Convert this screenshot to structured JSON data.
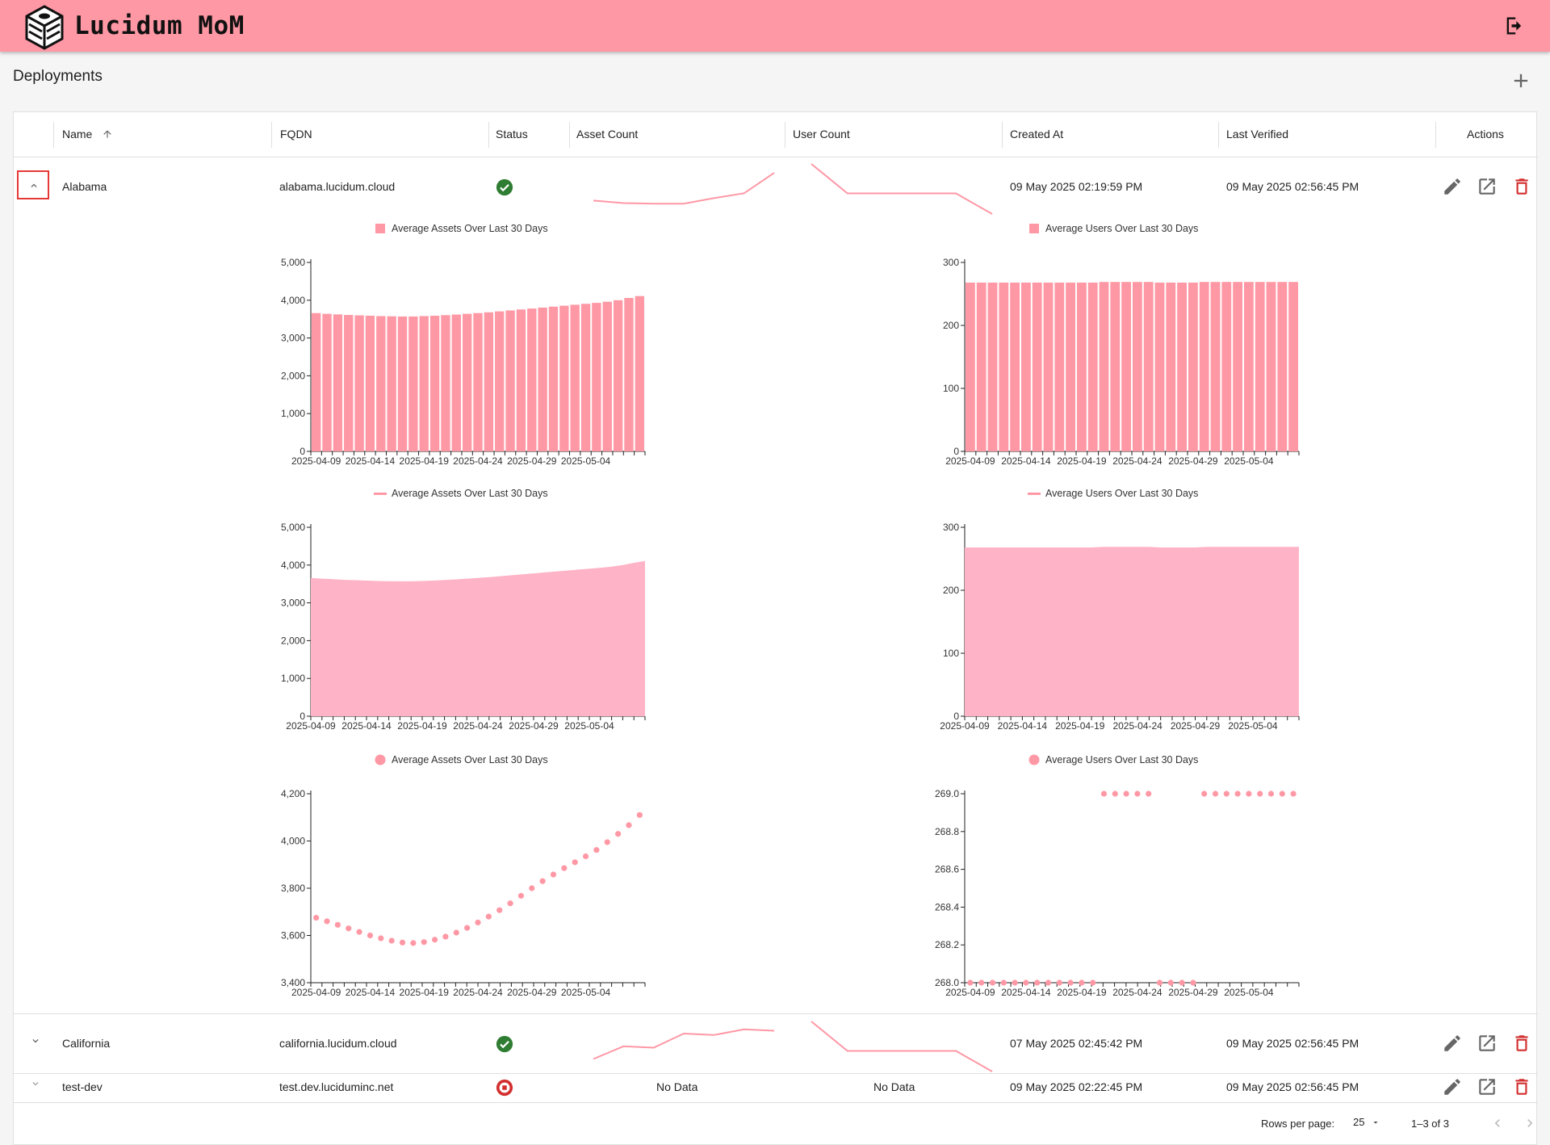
{
  "app": {
    "title": "Lucidum MoM",
    "logo_icon": "lucidum-cube-logo",
    "logout_icon": "logout-icon",
    "brand_color": "#ff98a5"
  },
  "page": {
    "title": "Deployments",
    "add_icon": "plus-icon"
  },
  "table": {
    "columns": [
      "Name",
      "FQDN",
      "Status",
      "Asset Count",
      "User Count",
      "Created At",
      "Last Verified",
      "Actions"
    ],
    "sort": {
      "column": "Name",
      "direction": "ascending",
      "icon": "arrow-up-icon"
    },
    "rows": [
      {
        "name": "Alabama",
        "fqdn": "alabama.lucidum.cloud",
        "status": "ok",
        "asset_count": "",
        "user_count": "",
        "asset_spark": [
          3660,
          3620,
          3610,
          3610,
          3700,
          3780,
          4110
        ],
        "user_spark": [
          269.0,
          268.0,
          268.0,
          268.0,
          268.0,
          267.3
        ],
        "created_at": "09 May 2025 02:19:59 PM",
        "last_verified": "09 May 2025 02:56:45 PM",
        "expanded": true
      },
      {
        "name": "California",
        "fqdn": "california.lucidum.cloud",
        "status": "ok",
        "asset_count": "",
        "user_count": "",
        "asset_spark": [
          2,
          11,
          10,
          20,
          19,
          23,
          22
        ],
        "user_spark": [
          269.0,
          268.0,
          268.0,
          268.0,
          268.0,
          267.3
        ],
        "created_at": "07 May 2025 02:45:42 PM",
        "last_verified": "09 May 2025 02:56:45 PM",
        "expanded": false
      },
      {
        "name": "test-dev",
        "fqdn": "test.dev.luciduminc.net",
        "status": "error",
        "asset_count": "No Data",
        "user_count": "No Data",
        "created_at": "09 May 2025 02:22:45 PM",
        "last_verified": "09 May 2025 02:56:45 PM",
        "expanded": false
      }
    ],
    "row_icons": {
      "expand_open": "chevron-up-icon",
      "expand_closed": "chevron-down-icon",
      "status_ok": "check-circle-icon",
      "status_error": "stop-circle-icon",
      "edit": "pencil-icon",
      "open": "open-in-new-icon",
      "delete": "trash-icon"
    },
    "colors": {
      "ok": "#2e7d32",
      "error": "#d32f2f",
      "delete": "#d32f2f",
      "series": "#ff98a5",
      "area": "#ffb3c6"
    }
  },
  "pagination": {
    "rows_per_page_label": "Rows per page:",
    "rows_per_page": "25",
    "range": "1–3 of 3"
  },
  "chart_data": [
    {
      "type": "bar",
      "legend": "Average Assets Over Last 30 Days",
      "tick_labels": [
        "2025-04-09",
        "2025-04-14",
        "2025-04-19",
        "2025-04-24",
        "2025-04-29",
        "2025-05-04"
      ],
      "x_start": "2025-04-09",
      "values": [
        3660,
        3640,
        3625,
        3610,
        3600,
        3590,
        3580,
        3575,
        3570,
        3570,
        3580,
        3590,
        3605,
        3620,
        3640,
        3660,
        3680,
        3705,
        3730,
        3755,
        3780,
        3805,
        3830,
        3855,
        3880,
        3905,
        3930,
        3960,
        4000,
        4060,
        4110
      ],
      "ylim": [
        0,
        5000
      ],
      "yticks": [
        0,
        1000,
        2000,
        3000,
        4000,
        5000
      ],
      "ytick_labels": [
        "0",
        "1,000",
        "2,000",
        "3,000",
        "4,000",
        "5,000"
      ]
    },
    {
      "type": "bar",
      "legend": "Average Users Over Last 30 Days",
      "tick_labels": [
        "2025-04-09",
        "2025-04-14",
        "2025-04-19",
        "2025-04-24",
        "2025-04-29",
        "2025-05-04"
      ],
      "x_start": "2025-04-09",
      "values": [
        268,
        268,
        268,
        268,
        268,
        268,
        268,
        268,
        268,
        268,
        268,
        268,
        269,
        269,
        269,
        269,
        269,
        268,
        268,
        268,
        268,
        269,
        269,
        269,
        269,
        269,
        269,
        269,
        269,
        269
      ],
      "ylim": [
        0,
        300
      ],
      "yticks": [
        0,
        100,
        200,
        300
      ],
      "ytick_labels": [
        "0",
        "100",
        "200",
        "300"
      ]
    },
    {
      "type": "area",
      "legend": "Average Assets Over Last 30 Days",
      "tick_labels": [
        "2025-04-09",
        "2025-04-14",
        "2025-04-19",
        "2025-04-24",
        "2025-04-29",
        "2025-05-04"
      ],
      "x_start": "2025-04-09",
      "values": [
        3660,
        3640,
        3625,
        3610,
        3600,
        3590,
        3580,
        3575,
        3570,
        3570,
        3580,
        3590,
        3605,
        3620,
        3640,
        3660,
        3680,
        3705,
        3730,
        3755,
        3780,
        3805,
        3830,
        3855,
        3880,
        3905,
        3930,
        3960,
        4000,
        4060,
        4110
      ],
      "ylim": [
        0,
        5000
      ],
      "yticks": [
        0,
        1000,
        2000,
        3000,
        4000,
        5000
      ],
      "ytick_labels": [
        "0",
        "1,000",
        "2,000",
        "3,000",
        "4,000",
        "5,000"
      ]
    },
    {
      "type": "area",
      "legend": "Average Users Over Last 30 Days",
      "tick_labels": [
        "2025-04-09",
        "2025-04-14",
        "2025-04-19",
        "2025-04-24",
        "2025-04-29",
        "2025-05-04"
      ],
      "x_start": "2025-04-09",
      "values": [
        268,
        268,
        268,
        268,
        268,
        268,
        268,
        268,
        268,
        268,
        268,
        268,
        269,
        269,
        269,
        269,
        269,
        268,
        268,
        268,
        268,
        269,
        269,
        269,
        269,
        269,
        269,
        269,
        269,
        269
      ],
      "ylim": [
        0,
        300
      ],
      "yticks": [
        0,
        100,
        200,
        300
      ],
      "ytick_labels": [
        "0",
        "100",
        "200",
        "300"
      ]
    },
    {
      "type": "scatter",
      "legend": "Average Assets Over Last 30 Days",
      "tick_labels": [
        "2025-04-09",
        "2025-04-14",
        "2025-04-19",
        "2025-04-24",
        "2025-04-29",
        "2025-05-04"
      ],
      "x_start": "2025-04-09",
      "values": [
        3675,
        3660,
        3645,
        3630,
        3615,
        3600,
        3588,
        3578,
        3570,
        3568,
        3572,
        3582,
        3595,
        3612,
        3632,
        3655,
        3680,
        3707,
        3736,
        3768,
        3800,
        3830,
        3858,
        3885,
        3910,
        3935,
        3962,
        3995,
        4030,
        4067,
        4110
      ],
      "ylim": [
        3400,
        4200
      ],
      "yticks": [
        3400,
        3600,
        3800,
        4000,
        4200
      ],
      "ytick_labels": [
        "3,400",
        "3,600",
        "3,800",
        "4,000",
        "4,200"
      ]
    },
    {
      "type": "scatter",
      "legend": "Average Users Over Last 30 Days",
      "tick_labels": [
        "2025-04-09",
        "2025-04-14",
        "2025-04-19",
        "2025-04-24",
        "2025-04-29",
        "2025-05-04"
      ],
      "x_start": "2025-04-09",
      "values": [
        268,
        268,
        268,
        268,
        268,
        268,
        268,
        268,
        268,
        268,
        268,
        268,
        269,
        269,
        269,
        269,
        269,
        268,
        268,
        268,
        268,
        269,
        269,
        269,
        269,
        269,
        269,
        269,
        269,
        269
      ],
      "ylim": [
        268.0,
        269.0
      ],
      "yticks": [
        268.0,
        268.2,
        268.4,
        268.6,
        268.8,
        269.0
      ],
      "ytick_labels": [
        "268.0",
        "268.2",
        "268.4",
        "268.6",
        "268.8",
        "269.0"
      ]
    }
  ]
}
